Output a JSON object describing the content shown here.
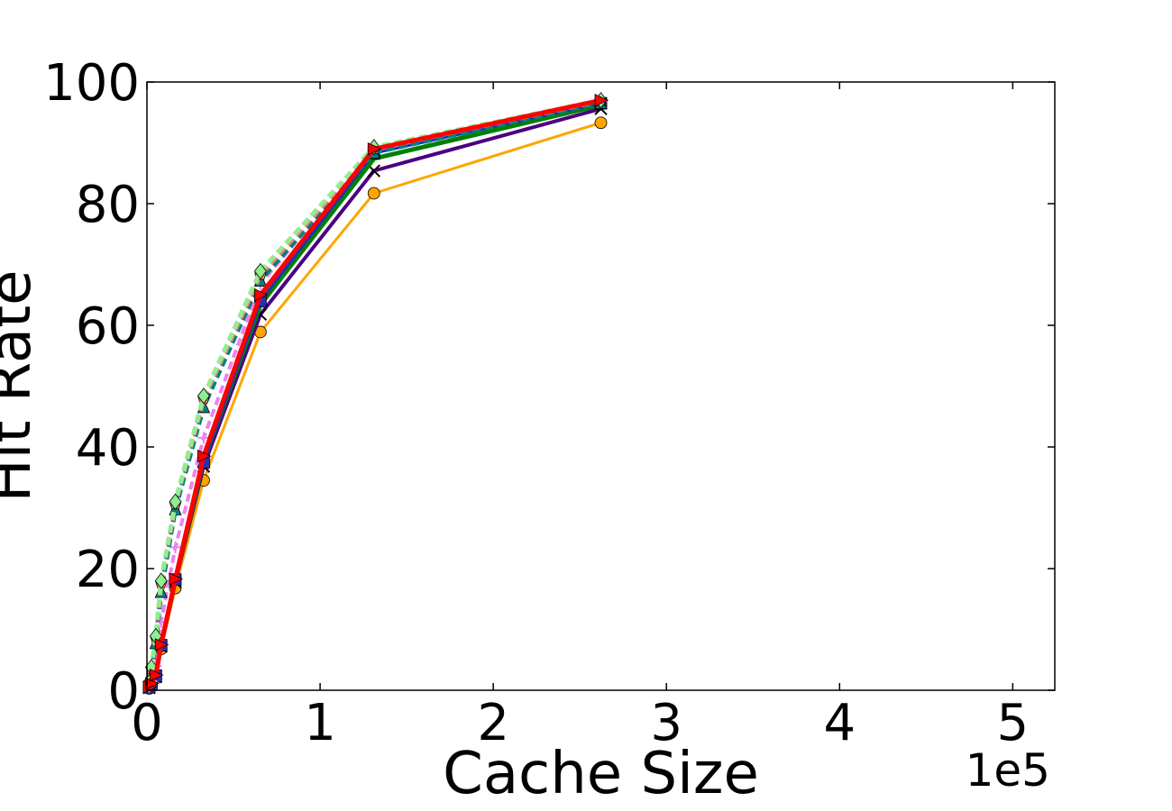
{
  "chart_data": {
    "type": "line",
    "title": "",
    "xlabel": "Cache Size",
    "ylabel": "Hit Rate",
    "x_offset_label": "1e5",
    "xlim": [
      0,
      5.24288
    ],
    "ylim": [
      0,
      100
    ],
    "xticks": [
      "0",
      "1",
      "2",
      "3",
      "4",
      "5"
    ],
    "yticks": [
      "0",
      "20",
      "40",
      "60",
      "80",
      "100"
    ],
    "grid": false,
    "legend": "none",
    "x": [
      0.0128,
      0.0256,
      0.0512,
      0.08192,
      0.16384,
      0.32768,
      0.65536,
      1.31072,
      2.62144,
      5.24288
    ],
    "series": [
      {
        "color": "#ffa500",
        "style": "solid",
        "marker": "circle",
        "width": 3,
        "values": [
          0.3,
          0.8,
          2.0,
          6.8,
          16.8,
          34.5,
          58.9,
          81.7,
          93.3,
          null
        ]
      },
      {
        "color": "#4b0082",
        "style": "solid",
        "marker": "x",
        "width": 4,
        "values": [
          0.4,
          0.9,
          2.2,
          7.2,
          17.8,
          36.8,
          61.8,
          85.4,
          95.6,
          null
        ]
      },
      {
        "color": "#008000",
        "style": "solid",
        "marker": "none",
        "width": 5,
        "values": [
          0.4,
          1.0,
          2.4,
          7.4,
          18.2,
          37.8,
          63.4,
          87.4,
          96.2,
          null
        ]
      },
      {
        "color": "#2030c0",
        "style": "solid",
        "marker": "square",
        "width": 3,
        "values": [
          0.5,
          1.0,
          2.4,
          7.4,
          18.2,
          37.5,
          64.0,
          88.3,
          96.5,
          null
        ]
      },
      {
        "color": "#ee82ee",
        "style": "dashed",
        "marker": "plus",
        "width": 4,
        "values": [
          0.6,
          1.5,
          4.0,
          11.2,
          23.5,
          41.5,
          66.8,
          88.9,
          96.8,
          null
        ]
      },
      {
        "color": "#008080",
        "style": "dashed",
        "marker": "triangle-up",
        "width": 5,
        "values": [
          1.0,
          2.8,
          7.8,
          16.2,
          29.8,
          46.6,
          67.4,
          88.4,
          96.6,
          null
        ]
      },
      {
        "color": "#fa8072",
        "style": "dashed",
        "marker": "pentagon",
        "width": 5,
        "values": [
          1.2,
          3.5,
          8.6,
          17.6,
          30.6,
          47.9,
          68.3,
          89.0,
          96.9,
          null
        ]
      },
      {
        "color": "#90ee90",
        "style": "dashed",
        "marker": "diamond",
        "width": 5,
        "values": [
          1.3,
          3.8,
          8.9,
          18.0,
          31.0,
          48.4,
          68.9,
          89.3,
          97.0,
          null
        ]
      },
      {
        "color": "#ff0000",
        "style": "solid",
        "marker": "triangle-right",
        "width": 5,
        "values": [
          0.5,
          1.1,
          2.5,
          7.5,
          18.3,
          38.5,
          65.0,
          89.0,
          97.0,
          null
        ]
      }
    ]
  }
}
